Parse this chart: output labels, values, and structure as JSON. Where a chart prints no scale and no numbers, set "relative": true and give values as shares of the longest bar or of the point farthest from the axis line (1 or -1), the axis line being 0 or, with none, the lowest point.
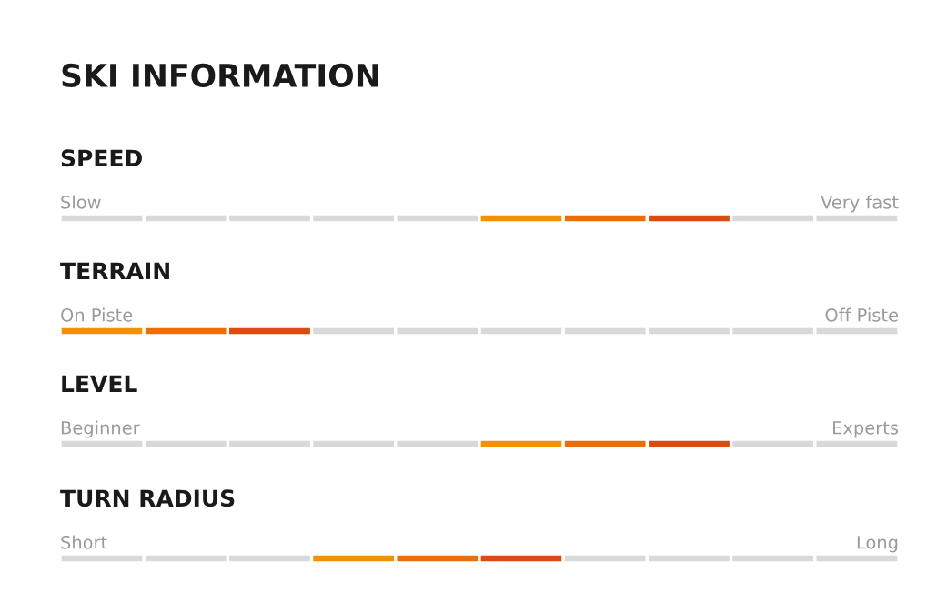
{
  "chart_data": [
    {
      "type": "bar",
      "orientation": "horizontal",
      "stacked": true,
      "relative": true,
      "title": "SKI INFORMATION",
      "subtitle": "SPEED",
      "annotations": [
        "Slow",
        "Very fast"
      ],
      "categories": [
        null
      ],
      "series": [
        {
          "color": "#d9d9d9",
          "values": [
            0.1
          ]
        },
        {
          "color": "#d9d9d9",
          "values": [
            0.1
          ]
        },
        {
          "color": "#d9d9d9",
          "values": [
            0.1
          ]
        },
        {
          "color": "#d9d9d9",
          "values": [
            0.1
          ]
        },
        {
          "color": "#d9d9d9",
          "values": [
            0.1
          ]
        },
        {
          "color": "#f39005",
          "values": [
            0.1
          ]
        },
        {
          "color": "#e86f0c",
          "values": [
            0.1
          ]
        },
        {
          "color": "#d94b10",
          "values": [
            0.1
          ]
        },
        {
          "color": "#d9d9d9",
          "values": [
            0.1
          ]
        },
        {
          "color": "#d9d9d9",
          "values": [
            0.1
          ]
        }
      ]
    },
    {
      "type": "bar",
      "orientation": "horizontal",
      "stacked": true,
      "relative": true,
      "subtitle": "TERRAIN",
      "annotations": [
        "On Piste",
        "Off Piste"
      ],
      "categories": [
        null
      ],
      "series": [
        {
          "color": "#f39005",
          "values": [
            0.1
          ]
        },
        {
          "color": "#e86f0c",
          "values": [
            0.1
          ]
        },
        {
          "color": "#d94b10",
          "values": [
            0.1
          ]
        },
        {
          "color": "#d9d9d9",
          "values": [
            0.1
          ]
        },
        {
          "color": "#d9d9d9",
          "values": [
            0.1
          ]
        },
        {
          "color": "#d9d9d9",
          "values": [
            0.1
          ]
        },
        {
          "color": "#d9d9d9",
          "values": [
            0.1
          ]
        },
        {
          "color": "#d9d9d9",
          "values": [
            0.1
          ]
        },
        {
          "color": "#d9d9d9",
          "values": [
            0.1
          ]
        },
        {
          "color": "#d9d9d9",
          "values": [
            0.1
          ]
        }
      ]
    },
    {
      "type": "bar",
      "orientation": "horizontal",
      "stacked": true,
      "relative": true,
      "subtitle": "LEVEL",
      "annotations": [
        "Beginner",
        "Experts"
      ],
      "categories": [
        null
      ],
      "series": [
        {
          "color": "#d9d9d9",
          "values": [
            0.1
          ]
        },
        {
          "color": "#d9d9d9",
          "values": [
            0.1
          ]
        },
        {
          "color": "#d9d9d9",
          "values": [
            0.1
          ]
        },
        {
          "color": "#d9d9d9",
          "values": [
            0.1
          ]
        },
        {
          "color": "#d9d9d9",
          "values": [
            0.1
          ]
        },
        {
          "color": "#f39005",
          "values": [
            0.1
          ]
        },
        {
          "color": "#e86f0c",
          "values": [
            0.1
          ]
        },
        {
          "color": "#d94b10",
          "values": [
            0.1
          ]
        },
        {
          "color": "#d9d9d9",
          "values": [
            0.1
          ]
        },
        {
          "color": "#d9d9d9",
          "values": [
            0.1
          ]
        }
      ]
    },
    {
      "type": "bar",
      "orientation": "horizontal",
      "stacked": true,
      "relative": true,
      "subtitle": "TURN RADIUS",
      "annotations": [
        "Short",
        "Long"
      ],
      "categories": [
        null
      ],
      "series": [
        {
          "color": "#d9d9d9",
          "values": [
            0.1
          ]
        },
        {
          "color": "#d9d9d9",
          "values": [
            0.1
          ]
        },
        {
          "color": "#d9d9d9",
          "values": [
            0.1
          ]
        },
        {
          "color": "#f39005",
          "values": [
            0.1
          ]
        },
        {
          "color": "#e86f0c",
          "values": [
            0.1
          ]
        },
        {
          "color": "#d94b10",
          "values": [
            0.1
          ]
        },
        {
          "color": "#d9d9d9",
          "values": [
            0.1
          ]
        },
        {
          "color": "#d9d9d9",
          "values": [
            0.1
          ]
        },
        {
          "color": "#d9d9d9",
          "values": [
            0.1
          ]
        },
        {
          "color": "#d9d9d9",
          "values": [
            0.1
          ]
        }
      ]
    }
  ]
}
